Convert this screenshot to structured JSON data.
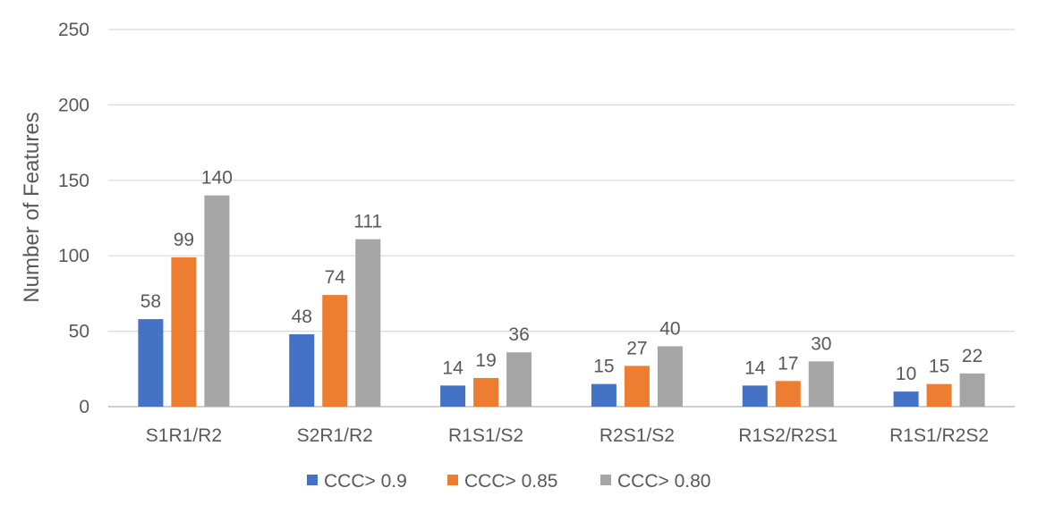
{
  "chart_data": {
    "type": "bar",
    "title": "",
    "xlabel": "",
    "ylabel": "Number of Features",
    "ylim": [
      0,
      250
    ],
    "yticks": [
      0,
      50,
      100,
      150,
      200,
      250
    ],
    "grid": true,
    "legend_position": "bottom",
    "categories": [
      "S1R1/R2",
      "S2R1/R2",
      "R1S1/S2",
      "R2S1/S2",
      "R1S2/R2S1",
      "R1S1/R2S2"
    ],
    "series": [
      {
        "name": "CCC> 0.9",
        "color": "#4472c4",
        "values": [
          58,
          48,
          14,
          15,
          14,
          10
        ]
      },
      {
        "name": "CCC> 0.85",
        "color": "#ed7d31",
        "values": [
          99,
          74,
          19,
          27,
          17,
          15
        ]
      },
      {
        "name": "CCC> 0.80",
        "color": "#a5a5a5",
        "values": [
          140,
          111,
          36,
          40,
          30,
          22
        ]
      }
    ]
  }
}
